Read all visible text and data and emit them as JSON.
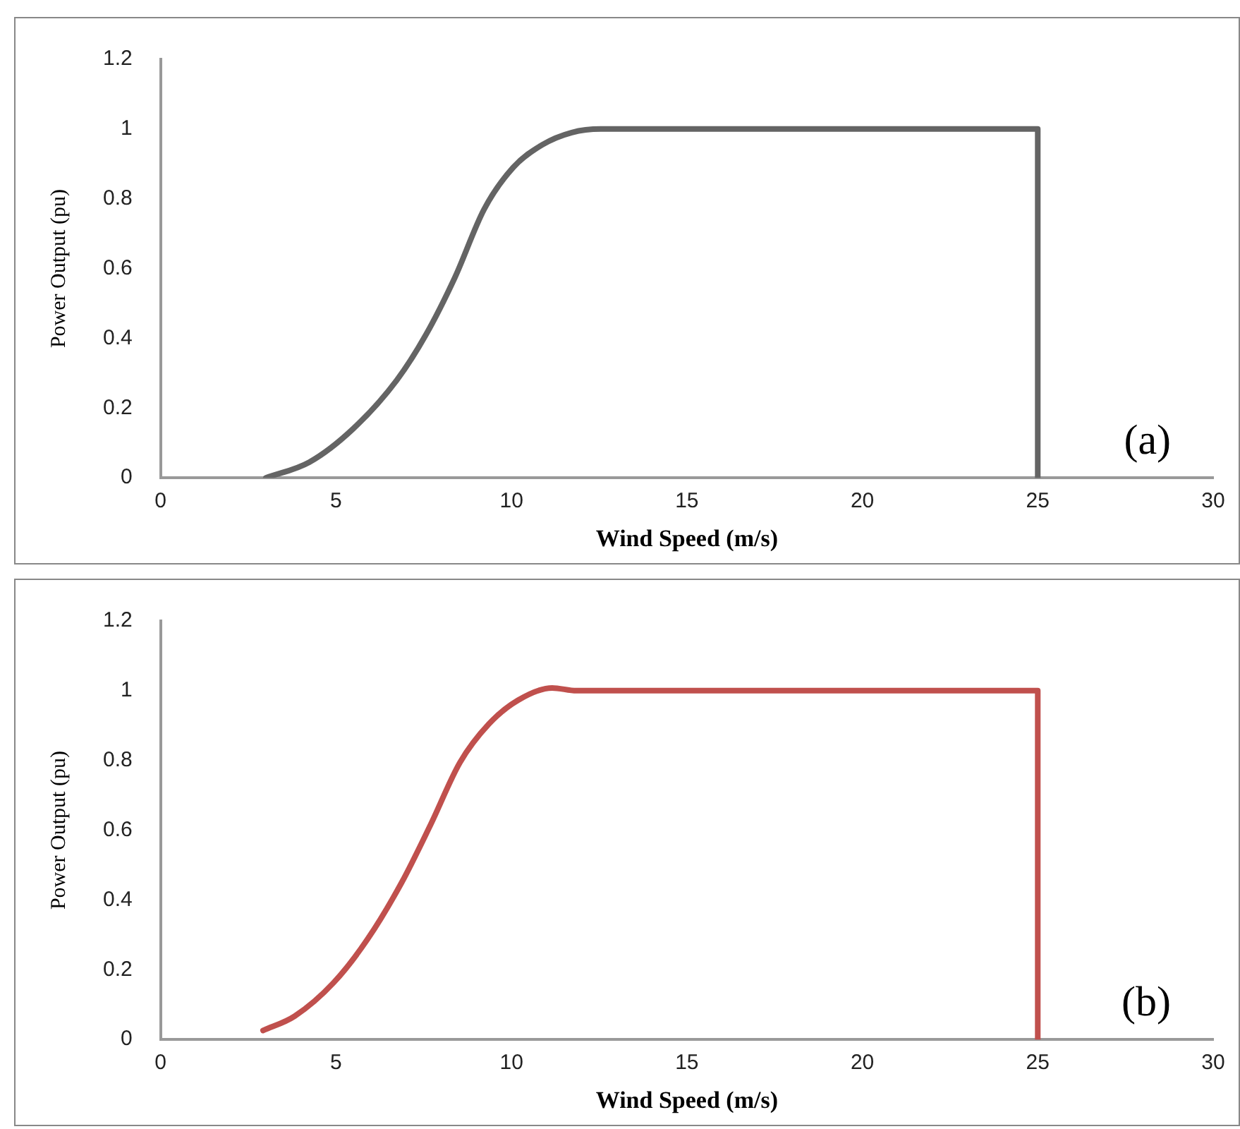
{
  "chart_data": [
    {
      "type": "line",
      "xlabel": "Wind Speed (m/s)",
      "ylabel": "Power Output (pu)",
      "annotations": [
        "(a)"
      ],
      "x": [
        3,
        4.24,
        5.48,
        6.73,
        7.56,
        8.39,
        9.22,
        10.05,
        10.88,
        11.72,
        12.55,
        25,
        25
      ],
      "series": [
        {
          "color": "#646464",
          "values": [
            0,
            0.045,
            0.14,
            0.28,
            0.41,
            0.575,
            0.77,
            0.89,
            0.955,
            0.99,
            1,
            1,
            0
          ]
        }
      ],
      "xlim": [
        0,
        30
      ],
      "xticks": [
        0,
        5,
        10,
        15,
        20,
        25,
        30
      ],
      "ylim": [
        0,
        1.2
      ],
      "yticks": [
        0,
        0.2,
        0.4,
        0.6,
        0.8,
        1,
        1.2
      ],
      "grid": false,
      "legend": false,
      "marker": "none",
      "line_style": "solid"
    },
    {
      "type": "line",
      "xlabel": "Wind Speed (m/s)",
      "ylabel": "Power Output (pu)",
      "annotations": [
        "(b)"
      ],
      "x": [
        2.92,
        3.82,
        4.93,
        5.9,
        6.87,
        7.7,
        8.53,
        9.36,
        10.19,
        11.16,
        11.85,
        25,
        25
      ],
      "series": [
        {
          "color": "#c0504d",
          "values": [
            0.026,
            0.067,
            0.163,
            0.288,
            0.45,
            0.617,
            0.794,
            0.905,
            0.973,
            1.008,
            1,
            1,
            0
          ]
        }
      ],
      "xlim": [
        0,
        30
      ],
      "xticks": [
        0,
        5,
        10,
        15,
        20,
        25,
        30
      ],
      "ylim": [
        0,
        1.2
      ],
      "yticks": [
        0,
        0.2,
        0.4,
        0.6,
        0.8,
        1,
        1.2
      ],
      "grid": false,
      "legend": false,
      "marker": "none",
      "line_style": "solid"
    }
  ]
}
